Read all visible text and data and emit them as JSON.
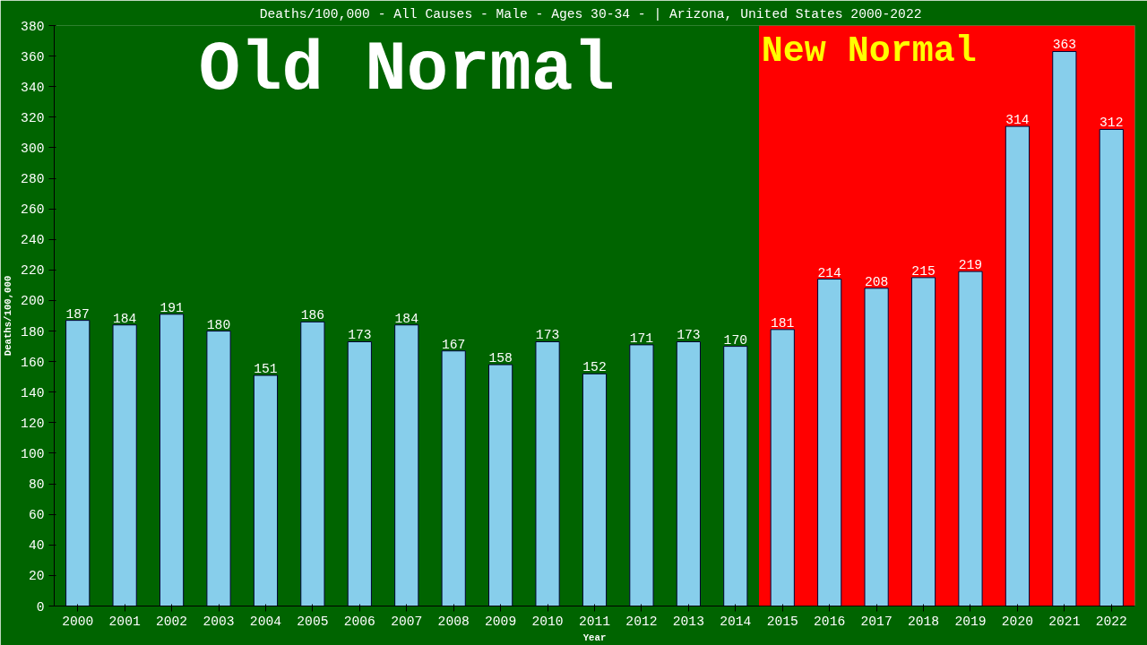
{
  "chart_data": {
    "type": "bar",
    "title": "Deaths/100,000 - All Causes - Male - Ages 30-34 -  | Arizona, United States 2000-2022",
    "xlabel": "Year",
    "ylabel": "Deaths/100,000",
    "categories": [
      "2000",
      "2001",
      "2002",
      "2003",
      "2004",
      "2005",
      "2006",
      "2007",
      "2008",
      "2009",
      "2010",
      "2011",
      "2012",
      "2013",
      "2014",
      "2015",
      "2016",
      "2017",
      "2018",
      "2019",
      "2020",
      "2021",
      "2022"
    ],
    "values": [
      187,
      184,
      191,
      180,
      151,
      186,
      173,
      184,
      167,
      158,
      173,
      152,
      171,
      173,
      170,
      181,
      214,
      208,
      215,
      219,
      314,
      363,
      312
    ],
    "color": "#87ceeb",
    "data_labels": true,
    "ylim": [
      0,
      380
    ],
    "yticks": [
      0,
      20,
      40,
      60,
      80,
      100,
      120,
      140,
      160,
      180,
      200,
      220,
      240,
      260,
      280,
      300,
      320,
      340,
      360,
      380
    ],
    "grid": false,
    "bands": [
      {
        "axis": "x",
        "from": "2000",
        "to": "2014",
        "label": "Old Normal",
        "color": "#006400"
      },
      {
        "axis": "x",
        "from": "2015",
        "to": "2022",
        "label": "New Normal",
        "color": "#ff0000"
      }
    ]
  }
}
